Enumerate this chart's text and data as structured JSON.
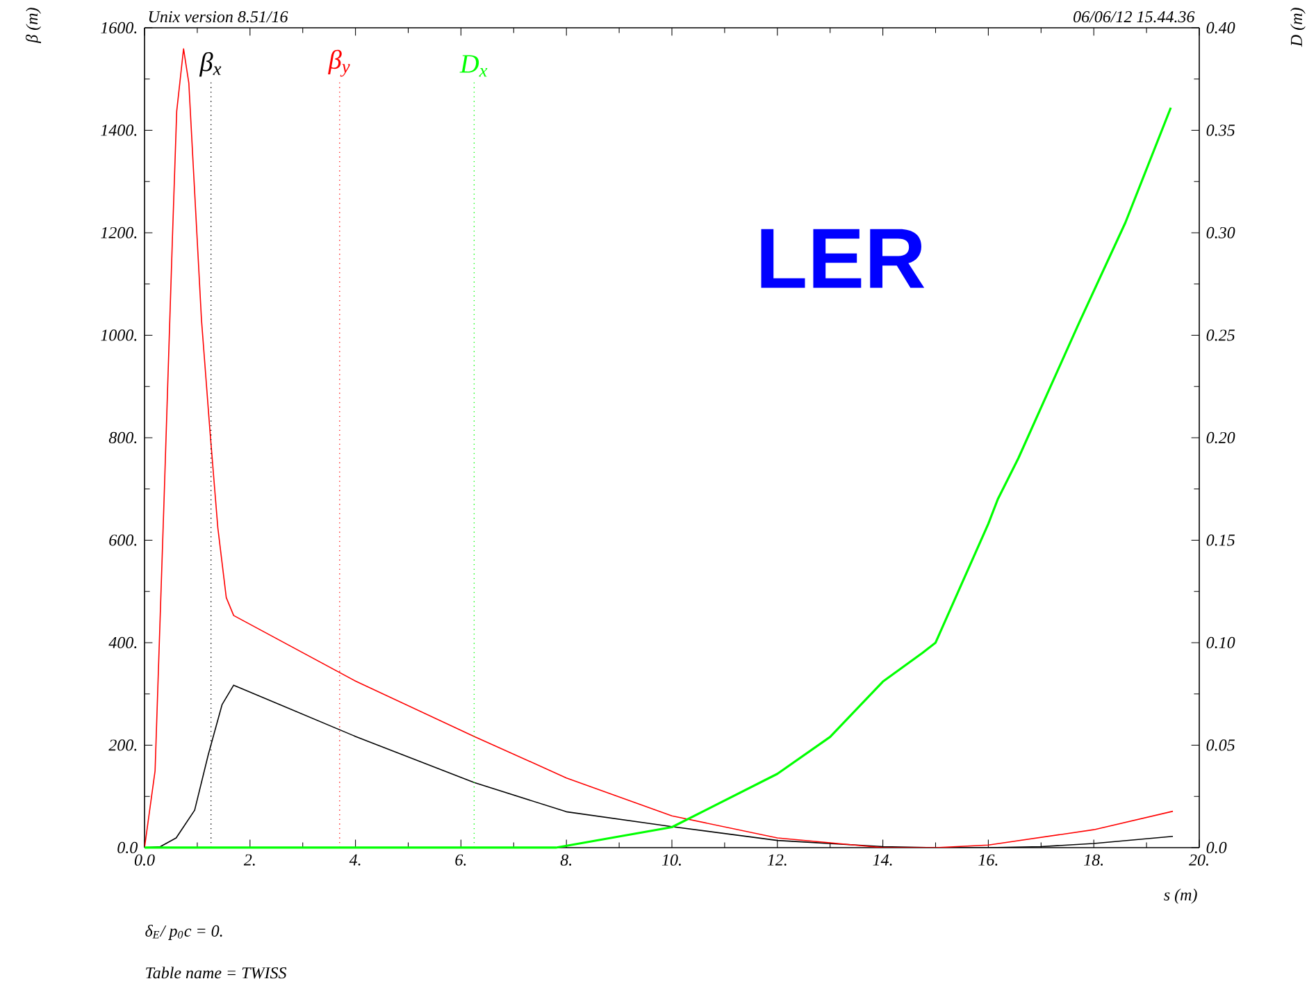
{
  "chart_data": {
    "type": "line",
    "title": "Unix version 8.51/16",
    "subtitle": "06/06/12  15.44.36",
    "xlabel": "s (m)",
    "ylabel": "β (m)",
    "y2label": "D (m)",
    "annotations": [
      "LER",
      "δ$_{E}$/ p$_{0}$c  =  0.",
      "Table name = TWISS"
    ],
    "xlim": [
      0,
      20
    ],
    "ylim": [
      0,
      1600
    ],
    "y2lim": [
      0,
      0.4
    ],
    "xticks": [
      {
        "value": 0,
        "label": "0.0"
      },
      {
        "value": 2,
        "label": "2."
      },
      {
        "value": 4,
        "label": "4."
      },
      {
        "value": 6,
        "label": "6."
      },
      {
        "value": 8,
        "label": "8."
      },
      {
        "value": 10,
        "label": "10."
      },
      {
        "value": 12,
        "label": "12."
      },
      {
        "value": 14,
        "label": "14."
      },
      {
        "value": 16,
        "label": "16."
      },
      {
        "value": 18,
        "label": "18."
      },
      {
        "value": 20,
        "label": "20."
      }
    ],
    "yticks": [
      {
        "value": 0,
        "label": "0.0"
      },
      {
        "value": 200,
        "label": "200."
      },
      {
        "value": 400,
        "label": "400."
      },
      {
        "value": 600,
        "label": "600."
      },
      {
        "value": 800,
        "label": "800."
      },
      {
        "value": 1000,
        "label": "1000."
      },
      {
        "value": 1200,
        "label": "1200."
      },
      {
        "value": 1400,
        "label": "1400."
      },
      {
        "value": 1600,
        "label": "1600."
      }
    ],
    "y2ticks": [
      {
        "value": 0,
        "label": "0.0"
      },
      0.05,
      {
        "value": 0.1,
        "label": "0.10"
      },
      0.15,
      {
        "value": 0.2,
        "label": "0.20"
      },
      0.25,
      {
        "value": 0.3,
        "label": "0.30"
      },
      0.35,
      {
        "value": 0.4,
        "label": "0.40"
      }
    ],
    "series": [
      {
        "color": "#000000",
        "x": [
          0,
          0.3,
          0.6,
          0.95,
          1.21,
          1.47,
          1.69,
          4,
          6.25,
          8,
          10,
          12,
          14,
          15,
          16,
          17,
          18,
          19.5
        ],
        "values": [
          0,
          2,
          19,
          73,
          182,
          279,
          317,
          217,
          127,
          70,
          41,
          14,
          2,
          0,
          0,
          2,
          8,
          22
        ]
      },
      {
        "color": "#ff0000",
        "x": [
          0,
          0.2,
          0.37,
          0.44,
          0.53,
          0.61,
          0.74,
          0.84,
          1.08,
          1.24,
          1.39,
          1.55,
          1.69,
          4,
          6.25,
          8,
          10,
          12,
          14,
          15,
          16,
          18,
          19.5
        ],
        "values": [
          0,
          150,
          678,
          904,
          1193,
          1437,
          1559,
          1492,
          1030,
          814,
          624,
          488,
          453,
          325,
          217,
          136,
          62,
          19,
          0,
          0,
          5,
          35,
          71
        ]
      },
      {
        "color": "#00ff00",
        "axis": "y2",
        "x": [
          0,
          7.8,
          10,
          12,
          13,
          14,
          14.75,
          15,
          16,
          16.18,
          16.57,
          17.72,
          18.6,
          19.46
        ],
        "values": [
          0,
          0,
          0.01,
          0.036,
          0.054,
          0.081,
          0.095,
          0.1,
          0.158,
          0.17,
          0.19,
          0.256,
          0.305,
          0.361
        ]
      }
    ],
    "ref_lines": [
      {
        "axis": "x",
        "value": 1.26,
        "label": "β$_{x}$",
        "color": "#000000",
        "line_style": "dotted"
      },
      {
        "axis": "x",
        "value": 3.7,
        "label": "β$_{y}$",
        "color": "#ff0000",
        "line_style": "dotted"
      },
      {
        "axis": "x",
        "value": 6.25,
        "label": "D$_{x}$",
        "color": "#00ff00",
        "line_style": "dotted"
      }
    ],
    "line_style": "solid",
    "grid": false
  }
}
